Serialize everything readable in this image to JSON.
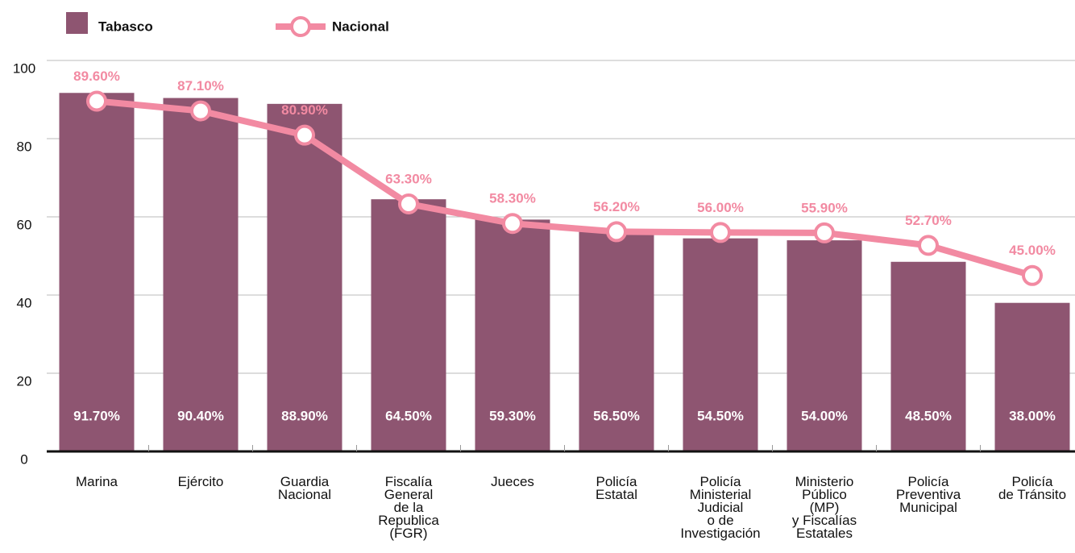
{
  "chart_data": {
    "type": "bar_line",
    "categories": [
      "Marina",
      "Ejército",
      "Guardia\nNacional",
      "Fiscalía\nGeneral\nde la\nRepublica\n(FGR)",
      "Jueces",
      "Policía\nEstatal",
      "Policía\nMinisterial\nJudicial\no de\nInvestigación",
      "Ministerio\nPúblico\n(MP)\ny Fiscalías\nEstatales",
      "Policía\nPreventiva\nMunicipal",
      "Policía\nde Tránsito"
    ],
    "series": [
      {
        "name": "Tabasco",
        "color": "#8e5571",
        "type": "bar",
        "values": [
          91.7,
          90.4,
          88.9,
          64.5,
          59.3,
          56.5,
          54.5,
          54.0,
          48.5,
          38.0
        ],
        "value_labels": [
          "91.70%",
          "90.40%",
          "88.90%",
          "64.50%",
          "59.30%",
          "56.50%",
          "54.50%",
          "54.00%",
          "48.50%",
          "38.00%"
        ]
      },
      {
        "name": "Nacional",
        "color": "#f28aa2",
        "type": "line",
        "values": [
          89.6,
          87.1,
          80.9,
          63.3,
          58.3,
          56.2,
          56.0,
          55.9,
          52.7,
          45.0
        ],
        "value_labels": [
          "89.60%",
          "87.10%",
          "80.90%",
          "63.30%",
          "58.30%",
          "56.20%",
          "56.00%",
          "55.90%",
          "52.70%",
          "45.00%"
        ]
      }
    ],
    "ylim": [
      0,
      100
    ],
    "yticks": [
      0,
      20,
      40,
      60,
      80,
      100
    ],
    "grid": true,
    "legend": "top-left"
  }
}
